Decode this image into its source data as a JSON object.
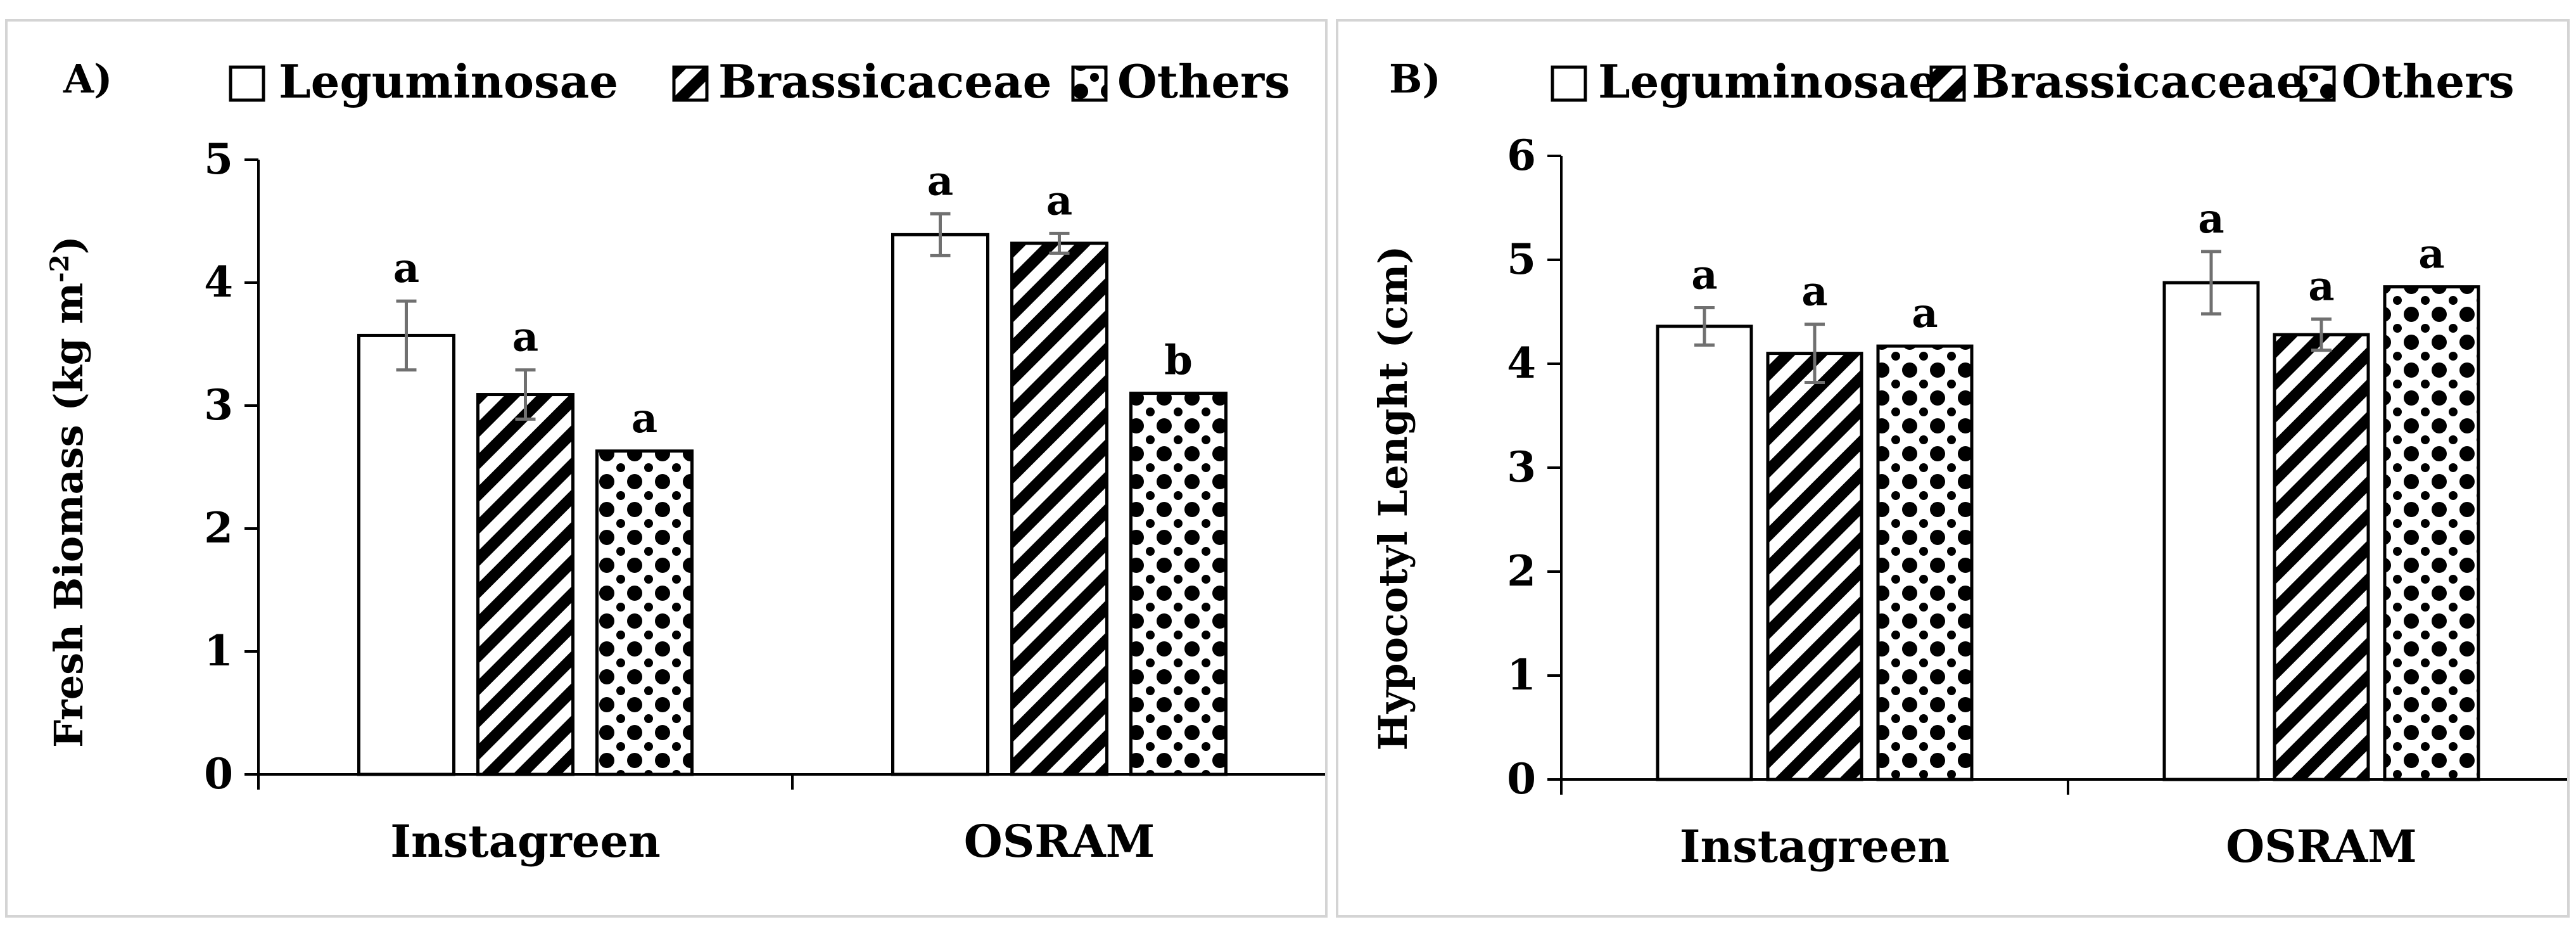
{
  "chart_data": [
    {
      "panel_label": "A)",
      "type": "bar",
      "categories": [
        "Instagreen",
        "OSRAM"
      ],
      "series": [
        {
          "name": "Leguminosae",
          "values": [
            3.57,
            4.39
          ],
          "errors": [
            0.28,
            0.17
          ],
          "letters": [
            "a",
            "a"
          ]
        },
        {
          "name": "Brassicaceae",
          "values": [
            3.09,
            4.32
          ],
          "errors": [
            0.2,
            0.08
          ],
          "letters": [
            "a",
            "a"
          ]
        },
        {
          "name": "Others",
          "values": [
            2.63,
            3.1
          ],
          "errors": [
            0,
            0
          ],
          "letters": [
            "a",
            "b"
          ]
        }
      ],
      "ylabel_main": "Fresh Biomass (kg m",
      "ylabel_sup": "-2",
      "ylabel_end": ")",
      "ylim": [
        0,
        5
      ],
      "yticks": [
        "0",
        "1",
        "2",
        "3",
        "4",
        "5"
      ],
      "grid": false,
      "legend": "top"
    },
    {
      "panel_label": "B)",
      "type": "bar",
      "categories": [
        "Instagreen",
        "OSRAM"
      ],
      "series": [
        {
          "name": "Leguminosae",
          "values": [
            4.36,
            4.78
          ],
          "errors": [
            0.18,
            0.3
          ],
          "letters": [
            "a",
            "a"
          ]
        },
        {
          "name": "Brassicaceae",
          "values": [
            4.1,
            4.28
          ],
          "errors": [
            0.28,
            0.15
          ],
          "letters": [
            "a",
            "a"
          ]
        },
        {
          "name": "Others",
          "values": [
            4.17,
            4.74
          ],
          "errors": [
            0,
            0
          ],
          "letters": [
            "a",
            "a"
          ]
        }
      ],
      "ylabel": "Hypocotyl Lenght (cm)",
      "ylim": [
        0,
        6
      ],
      "yticks": [
        "0",
        "1",
        "2",
        "3",
        "4",
        "5",
        "6"
      ],
      "grid": false,
      "legend": "top"
    }
  ],
  "colors": {
    "bar_fill": "#ffffff",
    "ink": "#000000",
    "error_bar": "#707070",
    "panel_border": "#d4d4d4"
  }
}
